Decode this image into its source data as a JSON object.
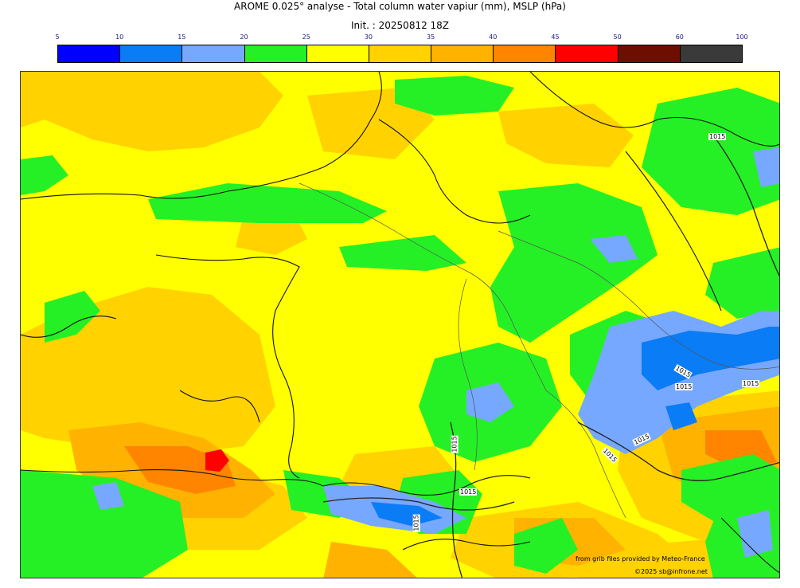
{
  "header": {
    "title": "AROME 0.025° analyse - Total column water vapiur (mm), MSLP (hPa)",
    "subtitle": "Init. : 20250812 18Z"
  },
  "colorbar": {
    "ticks": [
      "5",
      "10",
      "15",
      "20",
      "25",
      "30",
      "35",
      "40",
      "45",
      "50",
      "60",
      "100"
    ],
    "colors": [
      "#0000ff",
      "#0a7cf5",
      "#76a8ff",
      "#25f025",
      "#ffff00",
      "#ffd200",
      "#ffb300",
      "#ff8400",
      "#ff0000",
      "#6e0e00",
      "#3a3a3a"
    ]
  },
  "map": {
    "isobar_labels": [
      "1015",
      "1015",
      "1015",
      "1015",
      "1015",
      "1015",
      "1015",
      "1015",
      "1015"
    ],
    "palette": {
      "yellow": "#ffff00",
      "gold": "#ffd200",
      "orange": "#ffb300",
      "dark_orange": "#ff8400",
      "red": "#ff0000",
      "green": "#25f025",
      "light_blue": "#76a8ff",
      "blue": "#0a7cf5"
    }
  },
  "credits": {
    "source": "from grib files provided by Meteo-France",
    "copyright": "©2025 sb@infrone.net"
  }
}
